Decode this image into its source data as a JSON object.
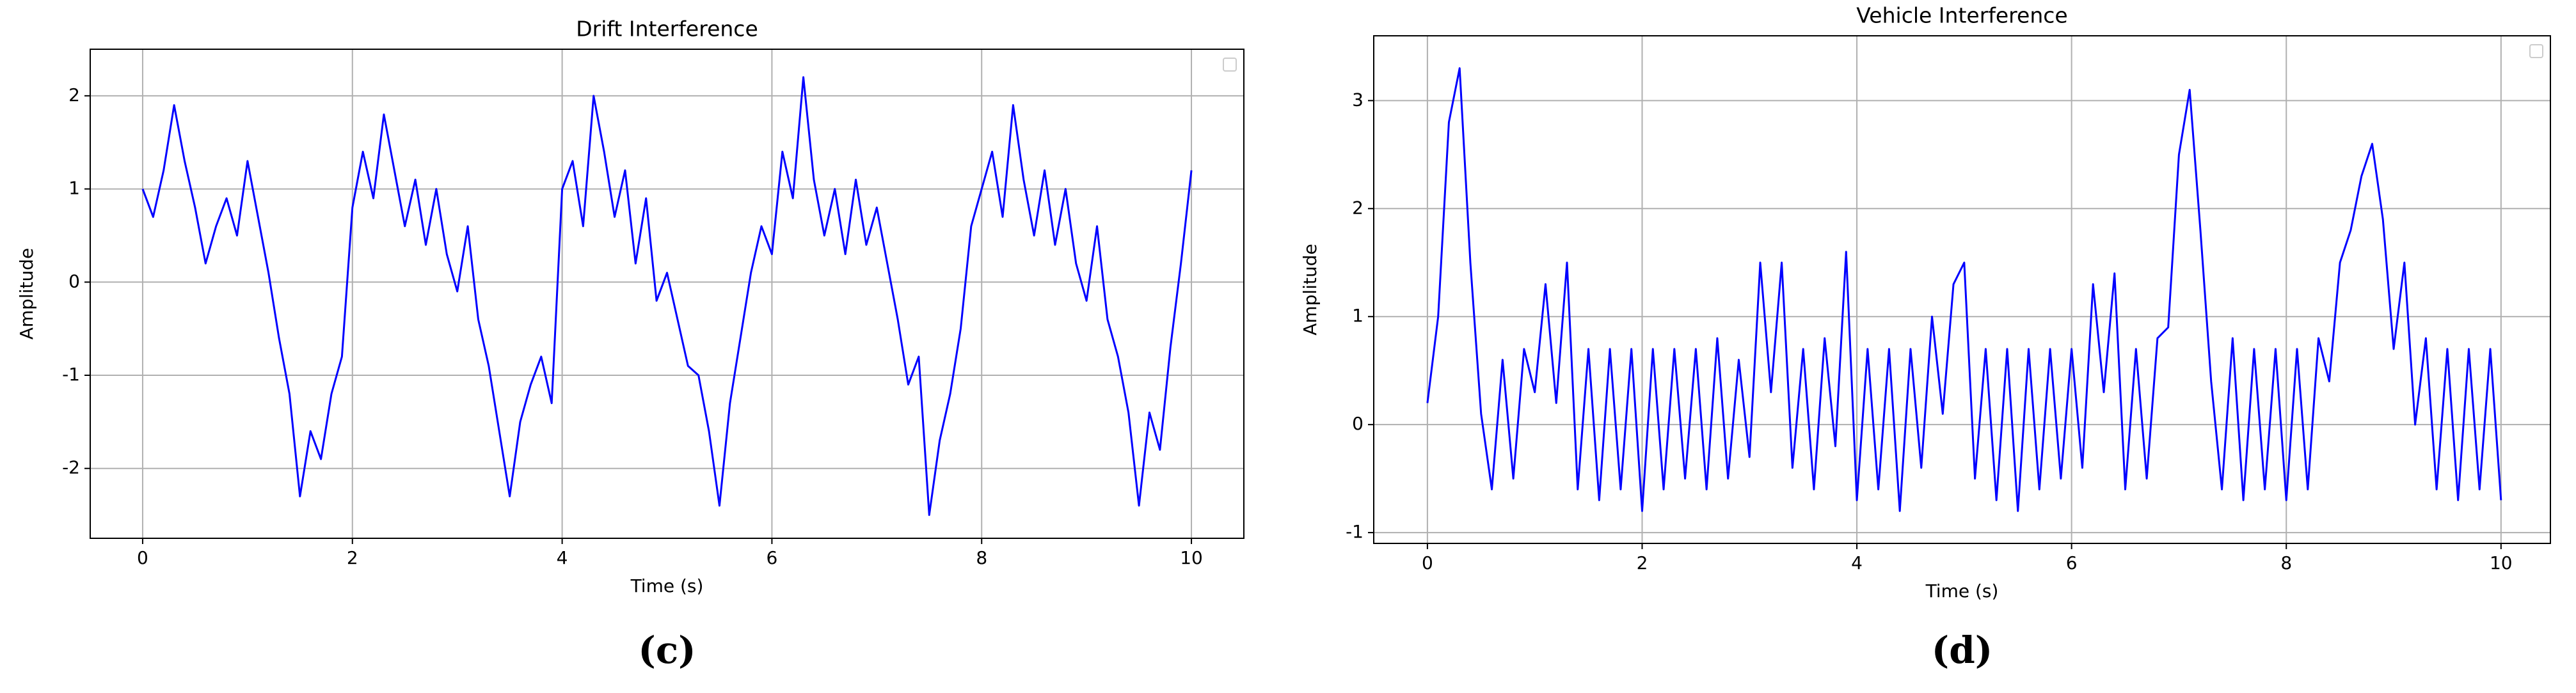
{
  "chart_data": [
    {
      "type": "line",
      "title": "Drift Interference",
      "xlabel": "Time (s)",
      "ylabel": "Amplitude",
      "caption": "(c)",
      "x": [
        0,
        0.1,
        0.2,
        0.3,
        0.4,
        0.5,
        0.6,
        0.7,
        0.8,
        0.9,
        1,
        1.1,
        1.2,
        1.3,
        1.4,
        1.5,
        1.6,
        1.7,
        1.8,
        1.9,
        2,
        2.1,
        2.2,
        2.3,
        2.4,
        2.5,
        2.6,
        2.7,
        2.8,
        2.9,
        3,
        3.1,
        3.2,
        3.3,
        3.4,
        3.5,
        3.6,
        3.7,
        3.8,
        3.9,
        4,
        4.1,
        4.2,
        4.3,
        4.4,
        4.5,
        4.6,
        4.7,
        4.8,
        4.9,
        5,
        5.1,
        5.2,
        5.3,
        5.4,
        5.5,
        5.6,
        5.7,
        5.8,
        5.9,
        6,
        6.1,
        6.2,
        6.3,
        6.4,
        6.5,
        6.6,
        6.7,
        6.8,
        6.9,
        7,
        7.1,
        7.2,
        7.3,
        7.4,
        7.5,
        7.6,
        7.7,
        7.8,
        7.9,
        8,
        8.1,
        8.2,
        8.3,
        8.4,
        8.5,
        8.6,
        8.7,
        8.8,
        8.9,
        9,
        9.1,
        9.2,
        9.3,
        9.4,
        9.5,
        9.6,
        9.7,
        9.8,
        9.9,
        10
      ],
      "series": [
        {
          "color": "#0000ff",
          "values": [
            1.0,
            0.7,
            1.2,
            1.9,
            1.3,
            0.8,
            0.2,
            0.6,
            0.9,
            0.5,
            1.3,
            0.7,
            0.1,
            -0.6,
            -1.2,
            -2.3,
            -1.6,
            -1.9,
            -1.2,
            -0.8,
            0.8,
            1.4,
            0.9,
            1.8,
            1.2,
            0.6,
            1.1,
            0.4,
            1.0,
            0.3,
            -0.1,
            0.6,
            -0.4,
            -0.9,
            -1.6,
            -2.3,
            -1.5,
            -1.1,
            -0.8,
            -1.3,
            1.0,
            1.3,
            0.6,
            2.0,
            1.4,
            0.7,
            1.2,
            0.2,
            0.9,
            -0.2,
            0.1,
            -0.4,
            -0.9,
            -1.0,
            -1.6,
            -2.4,
            -1.3,
            -0.6,
            0.1,
            0.6,
            0.3,
            1.4,
            0.9,
            2.2,
            1.1,
            0.5,
            1.0,
            0.3,
            1.1,
            0.4,
            0.8,
            0.2,
            -0.4,
            -1.1,
            -0.8,
            -2.5,
            -1.7,
            -1.2,
            -0.5,
            0.6,
            1.0,
            1.4,
            0.7,
            1.9,
            1.1,
            0.5,
            1.2,
            0.4,
            1.0,
            0.2,
            -0.2,
            0.6,
            -0.4,
            -0.8,
            -1.4,
            -2.4,
            -1.4,
            -1.8,
            -0.7,
            0.2,
            1.2
          ]
        }
      ],
      "xlim": [
        -0.5,
        10.5
      ],
      "ylim": [
        -2.75,
        2.5
      ],
      "xticks": [
        0,
        2,
        4,
        6,
        8,
        10
      ],
      "yticks": [
        -2,
        -1,
        0,
        1,
        2
      ],
      "grid": true
    },
    {
      "type": "line",
      "title": "Vehicle Interference",
      "xlabel": "Time (s)",
      "ylabel": "Amplitude",
      "caption": "(d)",
      "x": [
        0,
        0.1,
        0.2,
        0.3,
        0.4,
        0.5,
        0.6,
        0.7,
        0.8,
        0.9,
        1,
        1.1,
        1.2,
        1.3,
        1.4,
        1.5,
        1.6,
        1.7,
        1.8,
        1.9,
        2,
        2.1,
        2.2,
        2.3,
        2.4,
        2.5,
        2.6,
        2.7,
        2.8,
        2.9,
        3,
        3.1,
        3.2,
        3.3,
        3.4,
        3.5,
        3.6,
        3.7,
        3.8,
        3.9,
        4,
        4.1,
        4.2,
        4.3,
        4.4,
        4.5,
        4.6,
        4.7,
        4.8,
        4.9,
        5,
        5.1,
        5.2,
        5.3,
        5.4,
        5.5,
        5.6,
        5.7,
        5.8,
        5.9,
        6,
        6.1,
        6.2,
        6.3,
        6.4,
        6.5,
        6.6,
        6.7,
        6.8,
        6.9,
        7,
        7.1,
        7.2,
        7.3,
        7.4,
        7.5,
        7.6,
        7.7,
        7.8,
        7.9,
        8,
        8.1,
        8.2,
        8.3,
        8.4,
        8.5,
        8.6,
        8.7,
        8.8,
        8.9,
        9,
        9.1,
        9.2,
        9.3,
        9.4,
        9.5,
        9.6,
        9.7,
        9.8,
        9.9,
        10
      ],
      "series": [
        {
          "color": "#0000ff",
          "values": [
            0.2,
            1.0,
            2.8,
            3.3,
            1.5,
            0.1,
            -0.6,
            0.6,
            -0.5,
            0.7,
            0.3,
            1.3,
            0.2,
            1.5,
            -0.6,
            0.7,
            -0.7,
            0.7,
            -0.6,
            0.7,
            -0.8,
            0.7,
            -0.6,
            0.7,
            -0.5,
            0.7,
            -0.6,
            0.8,
            -0.5,
            0.6,
            -0.3,
            1.5,
            0.3,
            1.5,
            -0.4,
            0.7,
            -0.6,
            0.8,
            -0.2,
            1.6,
            -0.7,
            0.7,
            -0.6,
            0.7,
            -0.8,
            0.7,
            -0.4,
            1.0,
            0.1,
            1.3,
            1.5,
            -0.5,
            0.7,
            -0.7,
            0.7,
            -0.8,
            0.7,
            -0.6,
            0.7,
            -0.5,
            0.7,
            -0.4,
            1.3,
            0.3,
            1.4,
            -0.6,
            0.7,
            -0.5,
            0.8,
            0.9,
            2.5,
            3.1,
            1.8,
            0.4,
            -0.6,
            0.8,
            -0.7,
            0.7,
            -0.6,
            0.7,
            -0.7,
            0.7,
            -0.6,
            0.8,
            0.4,
            1.5,
            1.8,
            2.3,
            2.6,
            1.9,
            0.7,
            1.5,
            0.0,
            0.8,
            -0.6,
            0.7,
            -0.7,
            0.7,
            -0.6,
            0.7,
            -0.7
          ]
        }
      ],
      "xlim": [
        -0.5,
        10.46
      ],
      "ylim": [
        -1.1,
        3.6
      ],
      "xticks": [
        0,
        2,
        4,
        6,
        8,
        10
      ],
      "yticks": [
        -1,
        0,
        1,
        2,
        3
      ],
      "grid": true
    }
  ]
}
